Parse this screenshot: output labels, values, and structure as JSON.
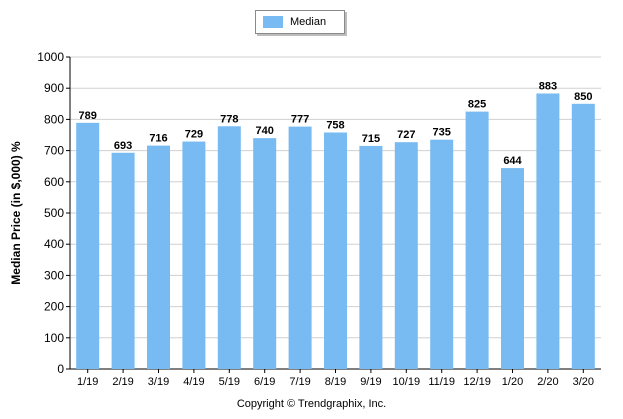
{
  "chart_data": {
    "type": "bar",
    "categories": [
      "1/19",
      "2/19",
      "3/19",
      "4/19",
      "5/19",
      "6/19",
      "7/19",
      "8/19",
      "9/19",
      "10/19",
      "11/19",
      "12/19",
      "1/20",
      "2/20",
      "3/20"
    ],
    "series": [
      {
        "name": "Median",
        "values": [
          789,
          693,
          716,
          729,
          778,
          740,
          777,
          758,
          715,
          727,
          735,
          825,
          644,
          883,
          850
        ]
      }
    ],
    "title": "",
    "xlabel": "",
    "ylabel": "Median Price (in $,000) %",
    "ylim": [
      0,
      1000
    ],
    "yticks": [
      0,
      100,
      200,
      300,
      400,
      500,
      600,
      700,
      800,
      900,
      1000
    ],
    "grid": true,
    "legend_position": "top-center",
    "bar_color": "#78bbf2",
    "data_labels": true
  },
  "footer": {
    "copyright": "Copyright © Trendgraphix, Inc."
  }
}
